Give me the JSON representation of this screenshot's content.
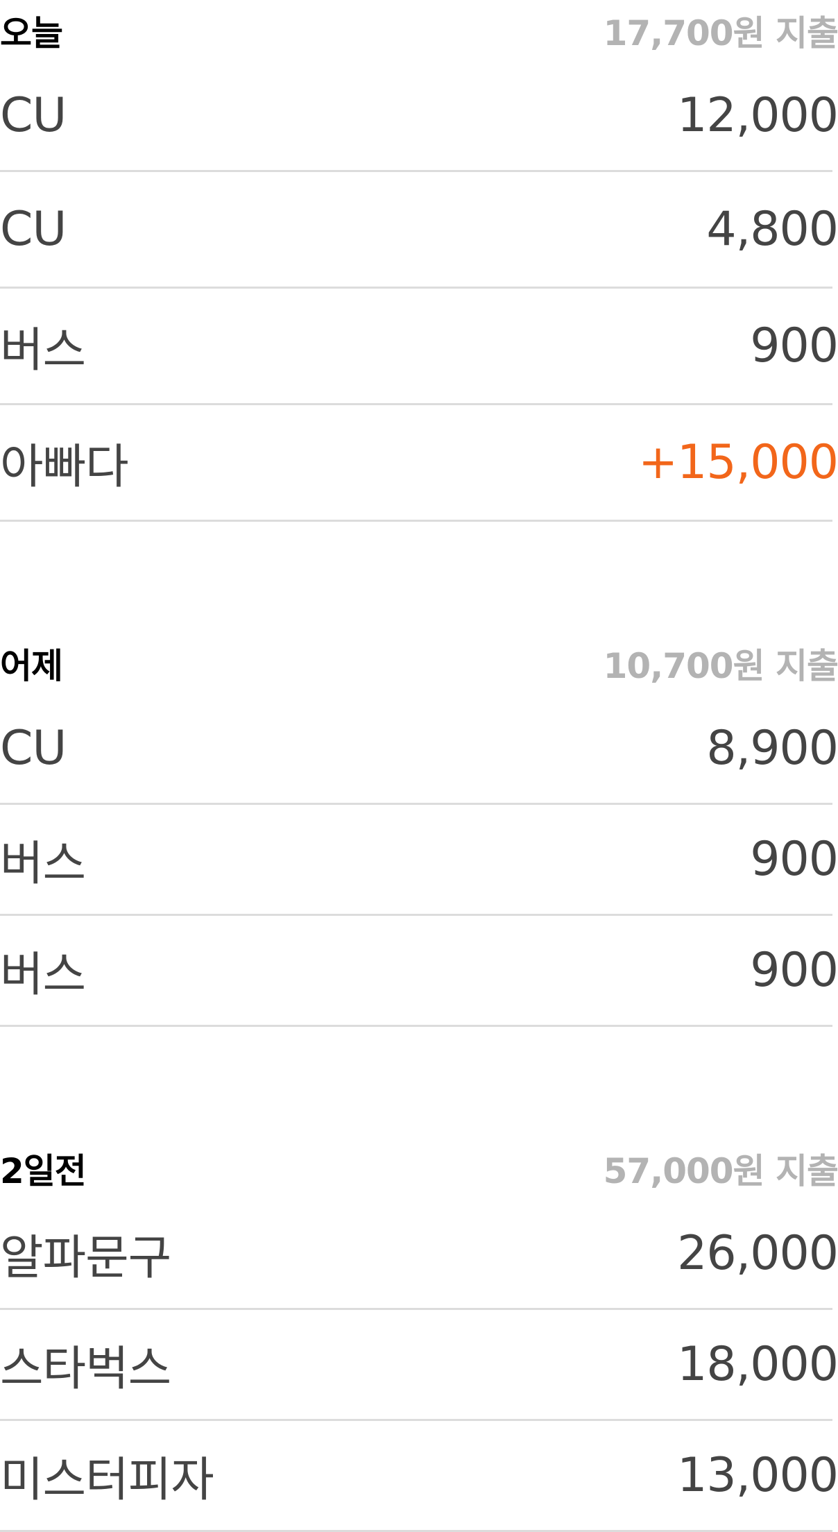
{
  "sections": [
    {
      "title": "오늘",
      "total": "17,700원 지출",
      "items": [
        {
          "name": "CU",
          "amount": "12,000",
          "type": "expense"
        },
        {
          "name": "CU",
          "amount": "4,800",
          "type": "expense"
        },
        {
          "name": "버스",
          "amount": "900",
          "type": "expense"
        },
        {
          "name": "아빠다",
          "amount": "+15,000",
          "type": "income"
        }
      ]
    },
    {
      "title": "어제",
      "total": "10,700원 지출",
      "items": [
        {
          "name": "CU",
          "amount": "8,900",
          "type": "expense"
        },
        {
          "name": "버스",
          "amount": "900",
          "type": "expense"
        },
        {
          "name": "버스",
          "amount": "900",
          "type": "expense"
        }
      ]
    },
    {
      "title": "2일전",
      "total": "57,000원 지출",
      "items": [
        {
          "name": "알파문구",
          "amount": "26,000",
          "type": "expense"
        },
        {
          "name": "스타벅스",
          "amount": "18,000",
          "type": "expense"
        },
        {
          "name": "미스터피자",
          "amount": "13,000",
          "type": "expense"
        }
      ]
    }
  ],
  "colors": {
    "income": "#f2661a",
    "expense": "#444444",
    "header_total": "#b3b3b3",
    "divider": "#dcdcdc"
  }
}
